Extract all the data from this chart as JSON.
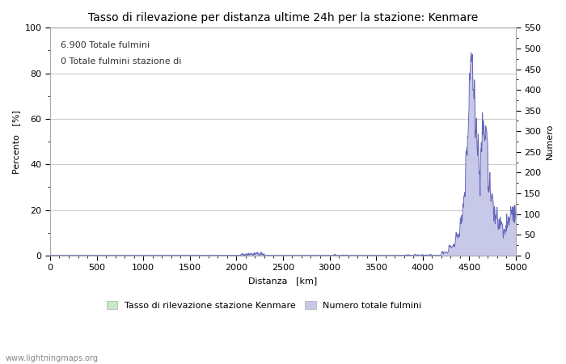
{
  "title": "Tasso di rilevazione per distanza ultime 24h per la stazione: Kenmare",
  "xlabel": "Distanza   [km]",
  "ylabel_left": "Percento   [%]",
  "ylabel_right": "Numero",
  "annotation_line1": "6.900 Totale fulmini",
  "annotation_line2": "0 Totale fulmini stazione di",
  "xlim": [
    0,
    5000
  ],
  "ylim_left": [
    0,
    100
  ],
  "ylim_right": [
    0,
    550
  ],
  "xticks": [
    0,
    500,
    1000,
    1500,
    2000,
    2500,
    3000,
    3500,
    4000,
    4500,
    5000
  ],
  "yticks_left": [
    0,
    20,
    40,
    60,
    80,
    100
  ],
  "yticks_right": [
    0,
    50,
    100,
    150,
    200,
    250,
    300,
    350,
    400,
    450,
    500,
    550
  ],
  "background_color": "#ffffff",
  "plot_bg_color": "#ffffff",
  "grid_color": "#cccccc",
  "line_color": "#6666bb",
  "fill_color_lightning": "#c8c8e8",
  "fill_color_station": "#c8e8c8",
  "legend_label_station": "Tasso di rilevazione stazione Kenmare",
  "legend_label_total": "Numero totale fulmini",
  "watermark": "www.lightningmaps.org",
  "title_fontsize": 10,
  "label_fontsize": 8,
  "tick_fontsize": 8,
  "annotation_fontsize": 8
}
